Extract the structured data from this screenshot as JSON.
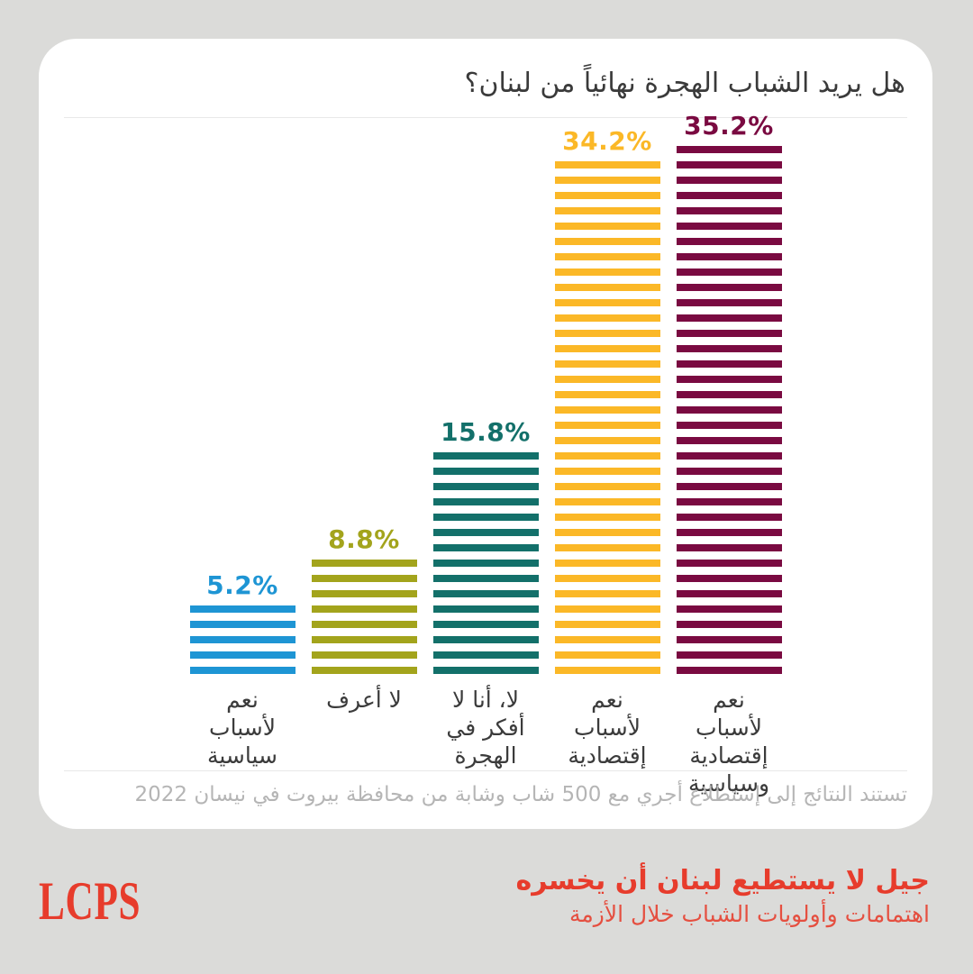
{
  "title": "هل يريد الشباب الهجرة نهائياً من لبنان؟",
  "chart_data": {
    "type": "bar",
    "title": "هل يريد الشباب الهجرة نهائياً من لبنان؟",
    "unit": "%",
    "ylim": [
      0,
      40
    ],
    "grid": false,
    "legend": "none",
    "style": "horizontal-striped vertical bars, one stripe per percentage point",
    "categories": [
      "نعم لأسباب سياسية",
      "لا أعرف",
      "لا، أنا لا أفكر في الهجرة",
      "نعم لأسباب إقتصادية",
      "نعم لأسباب إقتصادية وسياسية"
    ],
    "values": [
      5.2,
      8.8,
      15.8,
      34.2,
      35.2
    ],
    "bars": [
      {
        "value": 5.2,
        "value_label": "5.2%",
        "color": "#1e95d4",
        "label_lines": [
          "نعم",
          "لأسباب",
          "سياسية"
        ]
      },
      {
        "value": 8.8,
        "value_label": "8.8%",
        "color": "#a3a41c",
        "label_lines": [
          "لا أعرف"
        ]
      },
      {
        "value": 15.8,
        "value_label": "15.8%",
        "color": "#13706a",
        "label_lines": [
          "لا، أنا لا",
          "أفكر في",
          "الهجرة"
        ]
      },
      {
        "value": 34.2,
        "value_label": "34.2%",
        "color": "#fbb827",
        "label_lines": [
          "نعم",
          "لأسباب",
          "إقتصادية"
        ]
      },
      {
        "value": 35.2,
        "value_label": "35.2%",
        "color": "#7a0a41",
        "label_lines": [
          "نعم لأسباب",
          "إقتصادية",
          "وسياسية"
        ]
      }
    ]
  },
  "footnote": "تستند النتائج إلى إستطلاع أجري مع 500 شاب وشابة من محافظة بيروت في نيسان 2022",
  "footer": {
    "logo": "LCPS",
    "heading": "جيل لا يستطيع لبنان أن يخسره",
    "subheading": "اهتمامات وأولويات الشباب خلال الأزمة",
    "accent_color": "#e73c2c"
  },
  "colors": {
    "background": "#dbdbd9",
    "card": "#ffffff",
    "title_text": "#3a3a3a",
    "footnote_text": "#b5b5b5",
    "divider": "#e8e8e8"
  }
}
